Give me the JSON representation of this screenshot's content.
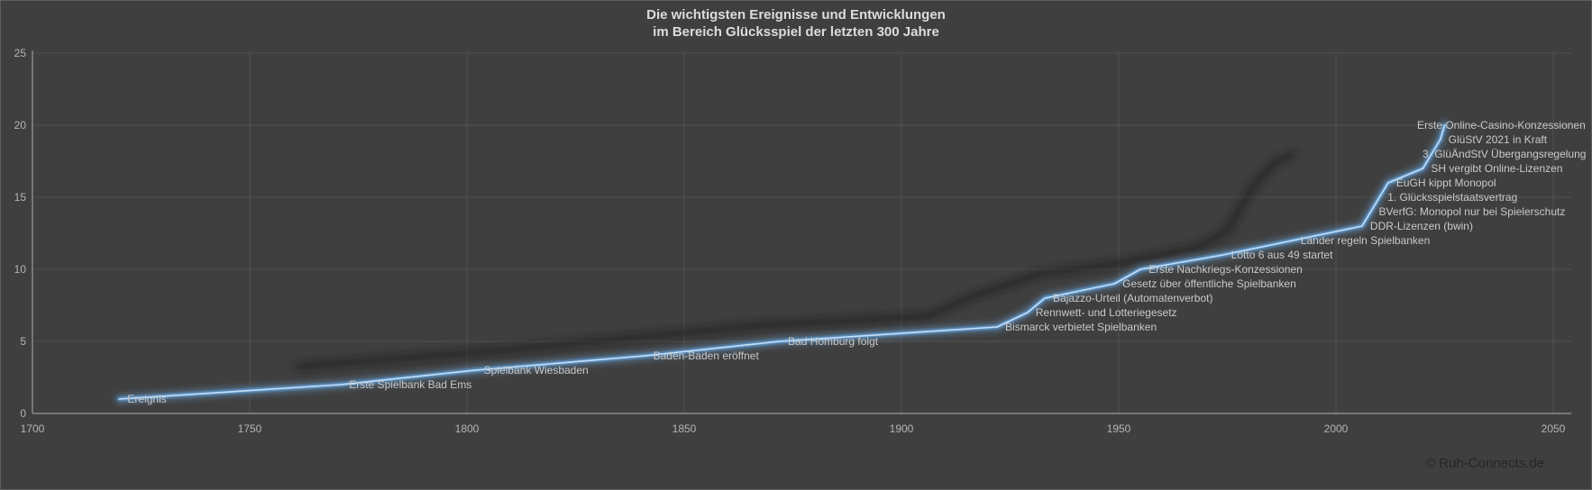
{
  "title": {
    "line1": "Die wichtigsten Ereignisse und Entwicklungen",
    "line2": "im Bereich Glücksspiel der letzten 300 Jahre"
  },
  "watermark": "© Ruh-Connects.de",
  "colors": {
    "background": "#3f3f3f",
    "grid": "rgba(255,255,255,0.09)",
    "axis": "#9a9a9a",
    "tick_text": "#b5b5b5",
    "label_text": "#c9c9c9",
    "title_text": "#dcdcdc",
    "watermark_text": "#262626",
    "line_core": "#d4e6f7",
    "line_mid": "#5b9bd5",
    "line_glow": "#6fa8dc",
    "shadow_line": "#161616"
  },
  "chart_data": {
    "type": "line",
    "title": "Die wichtigsten Ereignisse und Entwicklungen im Bereich Glücksspiel der letzten 300 Jahre",
    "xlabel": "",
    "ylabel": "",
    "xlim": [
      1700,
      2050
    ],
    "ylim": [
      0,
      25
    ],
    "x_ticks": [
      1700,
      1750,
      1800,
      1850,
      1900,
      1950,
      2000,
      2050
    ],
    "y_ticks": [
      0,
      5,
      10,
      15,
      20,
      25
    ],
    "grid": true,
    "legend_position": "none",
    "series_name": "Ereignis",
    "points": [
      {
        "x": 1720,
        "y": 1,
        "label": "Ereignis"
      },
      {
        "x": 1771,
        "y": 2,
        "label": "Erste Spielbank Bad Ems"
      },
      {
        "x": 1802,
        "y": 3,
        "label": "Spielbank Wiesbaden"
      },
      {
        "x": 1841,
        "y": 4,
        "label": "Baden-Baden eröffnet"
      },
      {
        "x": 1872,
        "y": 5,
        "label": "Bad Homburg folgt"
      },
      {
        "x": 1922,
        "y": 6,
        "label": "Bismarck verbietet Spielbanken"
      },
      {
        "x": 1929,
        "y": 7,
        "label": "Rennwett- und Lotteriegesetz"
      },
      {
        "x": 1933,
        "y": 8,
        "label": "Bajazzo-Urteil (Automatenverbot)"
      },
      {
        "x": 1949,
        "y": 9,
        "label": "Gesetz über öffentliche Spielbanken"
      },
      {
        "x": 1955,
        "y": 10,
        "label": "Erste Nachkriegs-Konzessionen"
      },
      {
        "x": 1974,
        "y": 11,
        "label": "Lotto 6 aus 49 startet"
      },
      {
        "x": 1990,
        "y": 12,
        "label": "Länder regeln Spielbanken"
      },
      {
        "x": 2006,
        "y": 13,
        "label": "DDR-Lizenzen (bwin)"
      },
      {
        "x": 2008,
        "y": 14,
        "label": "BVerfG: Monopol nur bei Spielerschutz"
      },
      {
        "x": 2010,
        "y": 15,
        "label": "1. Glücksspielstaatsvertrag"
      },
      {
        "x": 2012,
        "y": 16,
        "label": "EuGH kippt Monopol"
      },
      {
        "x": 2020,
        "y": 17,
        "label": "SH vergibt Online-Lizenzen"
      },
      {
        "x": 2022,
        "y": 18,
        "label": "3. GlüÄndStV Übergangsregelung"
      },
      {
        "x": 2024,
        "y": 19,
        "label": "GlüStV 2021 in Kraft"
      },
      {
        "x": 2025,
        "y": 20,
        "label": "Erste Online-Casino-Konzessionen"
      }
    ],
    "shadow_series": {
      "name": "shadow-line-decorative",
      "x": [
        1761,
        1809,
        1867,
        1906,
        1917,
        1932,
        1950,
        1969,
        1975,
        1981,
        1986,
        1990
      ],
      "y": [
        3.25,
        4.4,
        6.1,
        6.75,
        8.2,
        9.7,
        10.4,
        11.6,
        12.7,
        15.8,
        17.4,
        18.0
      ]
    }
  }
}
